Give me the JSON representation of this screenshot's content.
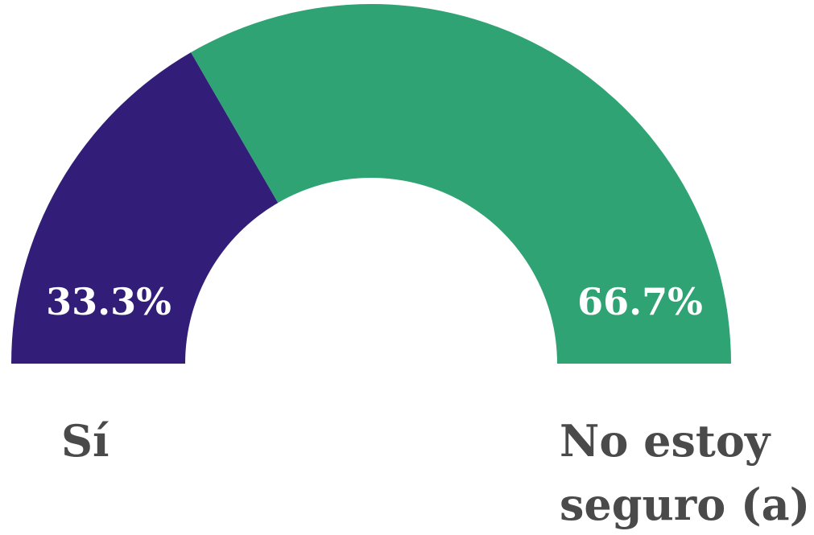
{
  "chart_data": {
    "type": "pie",
    "variant": "half-donut",
    "categories": [
      "Sí",
      "No estoy seguro (a)"
    ],
    "values": [
      33.3,
      66.7
    ],
    "value_labels": [
      "33.3%",
      "66.7%"
    ],
    "label_lines": [
      [
        "Sí"
      ],
      [
        "No estoy",
        "seguro (a)"
      ]
    ],
    "colors": [
      "#321e78",
      "#2fa373"
    ],
    "title": "",
    "legend": "below"
  }
}
